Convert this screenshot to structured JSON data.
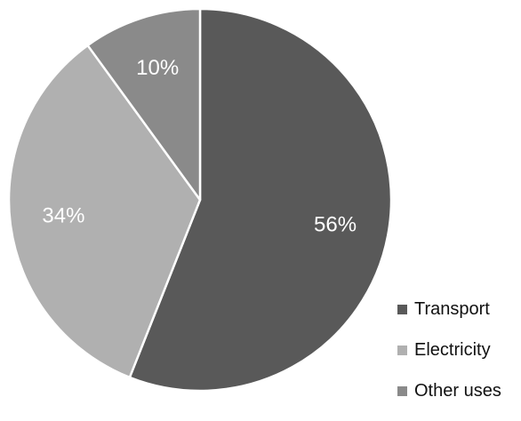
{
  "chart_data": {
    "type": "pie",
    "categories": [
      "Transport",
      "Electricity",
      "Other uses"
    ],
    "values": [
      56,
      34,
      10
    ],
    "labels": [
      "56%",
      "34%",
      "10%"
    ],
    "colors": [
      "#595959",
      "#b0b0b0",
      "#8a8a8a"
    ],
    "start_angle": "12 o'clock",
    "direction": "clockwise",
    "slice_border_color": "#ffffff",
    "legend": {
      "placement": "bottom-right",
      "items": [
        {
          "label": "Transport",
          "color": "#595959"
        },
        {
          "label": "Electricity",
          "color": "#b0b0b0"
        },
        {
          "label": "Other uses",
          "color": "#8a8a8a"
        }
      ]
    }
  }
}
